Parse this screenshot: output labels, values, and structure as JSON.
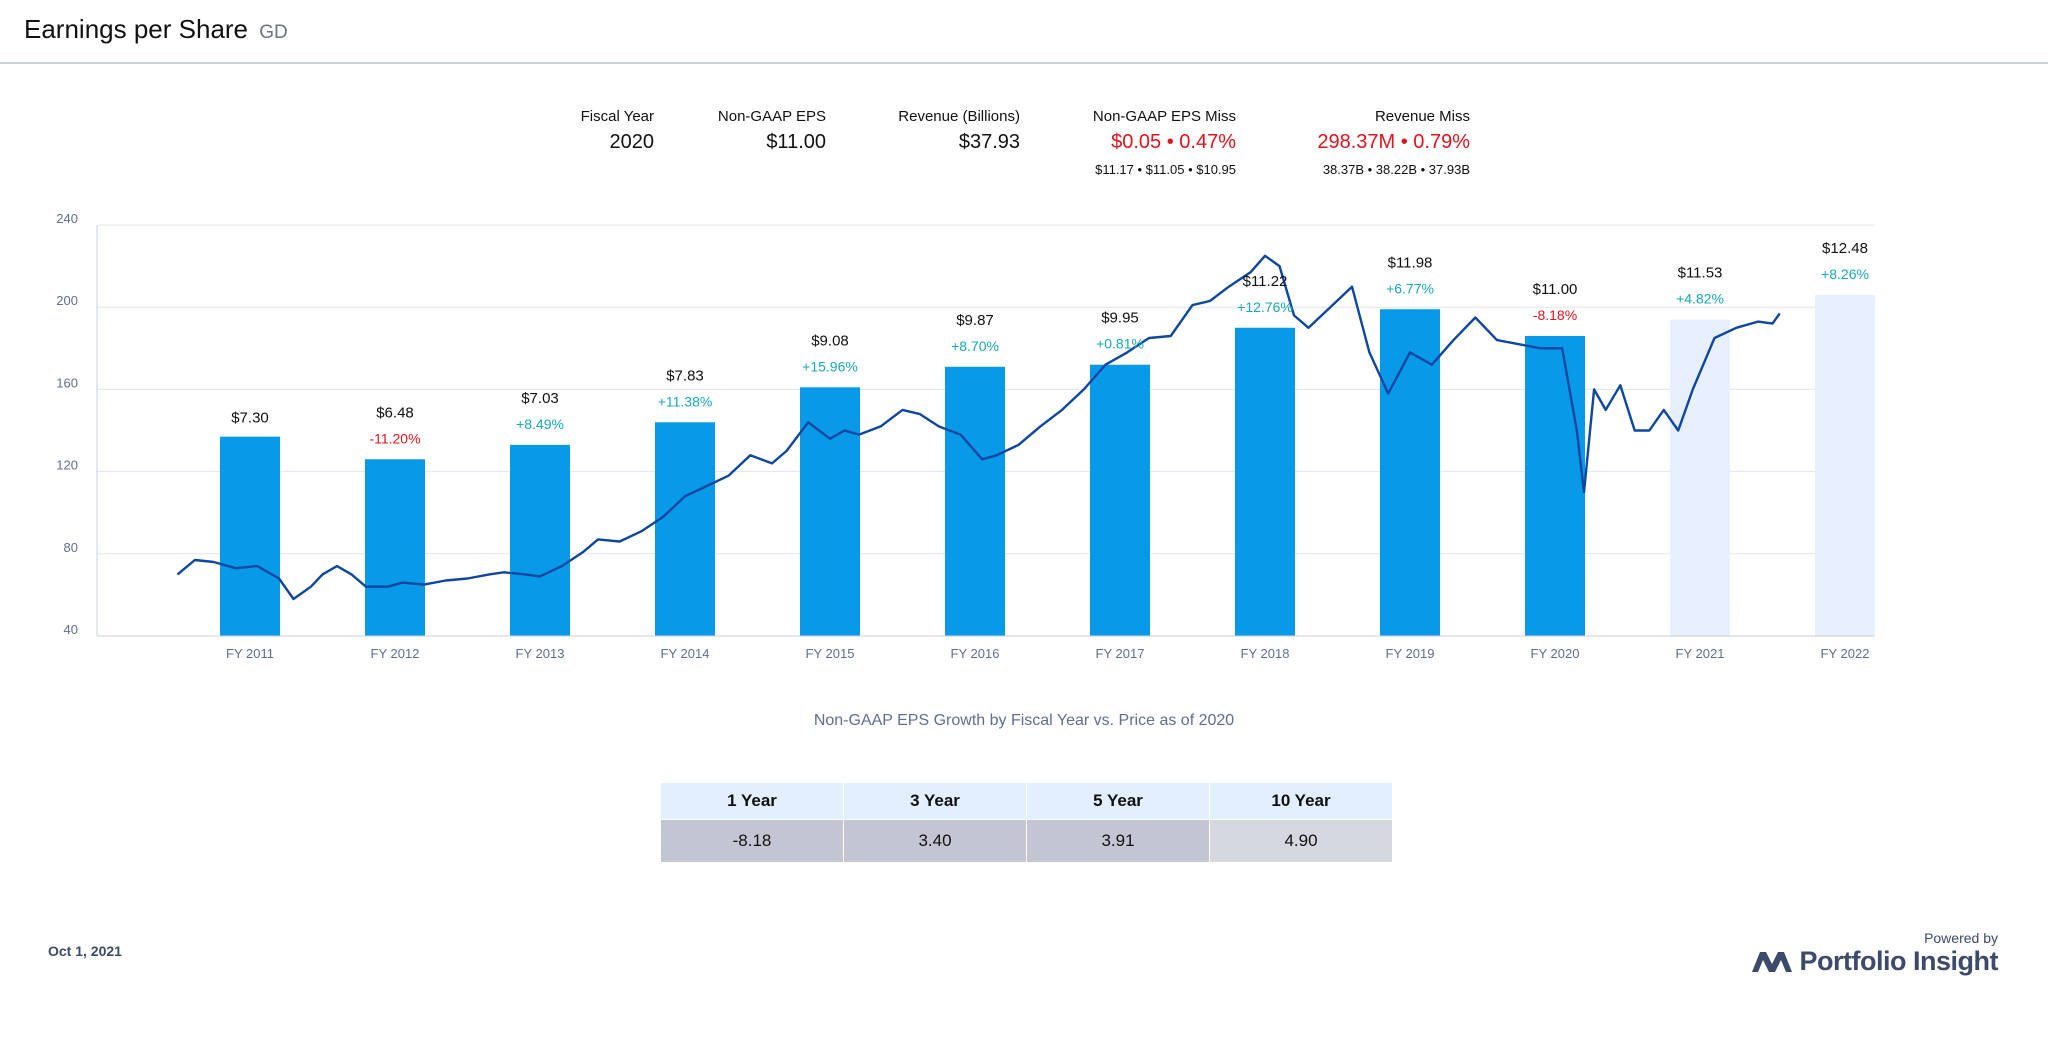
{
  "header": {
    "title": "Earnings per Share",
    "ticker": "GD"
  },
  "stats": {
    "fiscal_year": {
      "label": "Fiscal Year",
      "value": "2020"
    },
    "eps": {
      "label": "Non-GAAP EPS",
      "value": "$11.00"
    },
    "revenue": {
      "label": "Revenue (Billions)",
      "value": "$37.93"
    },
    "eps_miss": {
      "label": "Non-GAAP EPS Miss",
      "value": "$0.05 • 0.47%",
      "sub": "$11.17 • $11.05 • $10.95"
    },
    "revenue_miss": {
      "label": "Revenue Miss",
      "value": "298.37M • 0.79%",
      "sub": "38.37B • 38.22B • 37.93B"
    }
  },
  "colors": {
    "bar": "#0899e8",
    "bar_future": "#e8efff",
    "price_line": "#0d47a1",
    "positive": "#17a9b4",
    "negative": "#e3121d",
    "grid": "#e1e5ee"
  },
  "chart_data": {
    "type": "bar",
    "title": "Non-GAAP EPS Growth by Fiscal Year vs. Price as of 2020",
    "ylim": [
      40,
      240
    ],
    "yticks": [
      "240",
      "200",
      "160",
      "120",
      "80",
      "40"
    ],
    "categories": [
      "FY 2011",
      "FY 2012",
      "FY 2013",
      "FY 2014",
      "FY 2015",
      "FY 2016",
      "FY 2017",
      "FY 2018",
      "FY 2019",
      "FY 2020",
      "FY 2021",
      "FY 2022"
    ],
    "bars": [
      {
        "category": "FY 2011",
        "value": 137,
        "eps": "$7.30",
        "growth": "",
        "future": false
      },
      {
        "category": "FY 2012",
        "value": 126,
        "eps": "$6.48",
        "growth": "-11.20%",
        "future": false
      },
      {
        "category": "FY 2013",
        "value": 133,
        "eps": "$7.03",
        "growth": "+8.49%",
        "future": false
      },
      {
        "category": "FY 2014",
        "value": 144,
        "eps": "$7.83",
        "growth": "+11.38%",
        "future": false
      },
      {
        "category": "FY 2015",
        "value": 161,
        "eps": "$9.08",
        "growth": "+15.96%",
        "future": false
      },
      {
        "category": "FY 2016",
        "value": 171,
        "eps": "$9.87",
        "growth": "+8.70%",
        "future": false
      },
      {
        "category": "FY 2017",
        "value": 172,
        "eps": "$9.95",
        "growth": "+0.81%",
        "future": false
      },
      {
        "category": "FY 2018",
        "value": 190,
        "eps": "$11.22",
        "growth": "+12.76%",
        "future": false
      },
      {
        "category": "FY 2019",
        "value": 199,
        "eps": "$11.98",
        "growth": "+6.77%",
        "future": false
      },
      {
        "category": "FY 2020",
        "value": 186,
        "eps": "$11.00",
        "growth": "-8.18%",
        "future": false
      },
      {
        "category": "FY 2021",
        "value": 194,
        "eps": "$11.53",
        "growth": "+4.82%",
        "future": true
      },
      {
        "category": "FY 2022",
        "value": 206,
        "eps": "$12.48",
        "growth": "+8.26%",
        "future": true
      }
    ],
    "price_series": {
      "name": "Price",
      "x": [
        2010.5,
        2010.62,
        2010.75,
        2010.9,
        2011.05,
        2011.2,
        2011.3,
        2011.42,
        2011.5,
        2011.6,
        2011.7,
        2011.8,
        2011.95,
        2012.05,
        2012.2,
        2012.35,
        2012.5,
        2012.65,
        2012.75,
        2012.9,
        2013.0,
        2013.15,
        2013.3,
        2013.4,
        2013.55,
        2013.7,
        2013.85,
        2014.0,
        2014.15,
        2014.3,
        2014.45,
        2014.6,
        2014.7,
        2014.85,
        2015.0,
        2015.1,
        2015.2,
        2015.35,
        2015.5,
        2015.62,
        2015.75,
        2015.9,
        2016.05,
        2016.15,
        2016.3,
        2016.45,
        2016.6,
        2016.75,
        2016.9,
        2017.05,
        2017.2,
        2017.35,
        2017.5,
        2017.62,
        2017.75,
        2017.9,
        2018.0,
        2018.1,
        2018.2,
        2018.3,
        2018.45,
        2018.6,
        2018.72,
        2018.85,
        2019.0,
        2019.15,
        2019.3,
        2019.45,
        2019.6,
        2019.75,
        2019.9,
        2020.05,
        2020.15,
        2020.2,
        2020.27,
        2020.35,
        2020.45,
        2020.55,
        2020.65,
        2020.75,
        2020.85,
        2020.95,
        2021.1,
        2021.25,
        2021.4,
        2021.5,
        2021.55
      ],
      "y": [
        70,
        77,
        76,
        73,
        74,
        68,
        58,
        64,
        70,
        74,
        70,
        64,
        64,
        66,
        65,
        67,
        68,
        70,
        71,
        70,
        69,
        74,
        81,
        87,
        86,
        91,
        98,
        108,
        113,
        118,
        128,
        124,
        130,
        144,
        136,
        140,
        138,
        142,
        150,
        148,
        142,
        138,
        126,
        128,
        133,
        142,
        150,
        160,
        172,
        178,
        185,
        186,
        201,
        203,
        210,
        217,
        225,
        220,
        196,
        190,
        200,
        210,
        178,
        158,
        178,
        172,
        184,
        195,
        184,
        182,
        180,
        180,
        140,
        110,
        160,
        150,
        162,
        140,
        140,
        150,
        140,
        160,
        185,
        190,
        193,
        192,
        197
      ]
    }
  },
  "table": {
    "headers": [
      "1 Year",
      "3 Year",
      "5 Year",
      "10 Year"
    ],
    "values": [
      "-8.18",
      "3.40",
      "3.91",
      "4.90"
    ]
  },
  "footer": {
    "date": "Oct 1, 2021",
    "powered_by": "Powered by",
    "brand": "Portfolio Insight"
  }
}
